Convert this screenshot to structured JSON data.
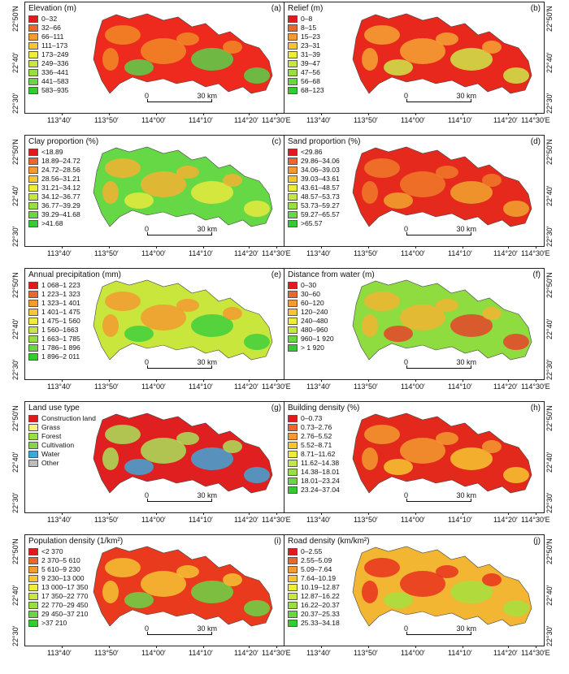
{
  "figure": {
    "x_ticks": [
      "113°40′",
      "113°50′",
      "114°00′",
      "114°10′",
      "114°20′",
      "114°30′E"
    ],
    "y_ticks": [
      "22°50′N",
      "22°40′",
      "22°30′"
    ],
    "scale_zero": "0",
    "scale_label": "30 km"
  },
  "panels": [
    {
      "id": "a",
      "title": "Elevation (m)",
      "label": "(a)",
      "base": "#ee2a1e",
      "blob": "#f08a26",
      "accent": "#58d14a",
      "legend": [
        {
          "text": "0–32",
          "color": "#e31a1c"
        },
        {
          "text": "32–66",
          "color": "#f0662a"
        },
        {
          "text": "66–111",
          "color": "#f59a2e"
        },
        {
          "text": "111–173",
          "color": "#f7c631"
        },
        {
          "text": "173–249",
          "color": "#eeee3a"
        },
        {
          "text": "249–336",
          "color": "#c4e83d"
        },
        {
          "text": "336–441",
          "color": "#98df41"
        },
        {
          "text": "441–583",
          "color": "#6ad545"
        },
        {
          "text": "583–935",
          "color": "#33cc33"
        }
      ]
    },
    {
      "id": "b",
      "title": "Relief (m)",
      "label": "(b)",
      "base": "#e8281c",
      "blob": "#f4a233",
      "accent": "#cfe64a",
      "legend": [
        {
          "text": "0–8",
          "color": "#e31a1c"
        },
        {
          "text": "8–15",
          "color": "#f0662a"
        },
        {
          "text": "15–23",
          "color": "#f59a2e"
        },
        {
          "text": "23–31",
          "color": "#f7c631"
        },
        {
          "text": "31–39",
          "color": "#eeee3a"
        },
        {
          "text": "39–47",
          "color": "#c4e83d"
        },
        {
          "text": "47–56",
          "color": "#98df41"
        },
        {
          "text": "56–68",
          "color": "#6ad545"
        },
        {
          "text": "68–123",
          "color": "#33cc33"
        }
      ]
    },
    {
      "id": "c",
      "title": "Clay proportion (%)",
      "label": "(c)",
      "base": "#66d845",
      "blob": "#f3b233",
      "accent": "#e6ea3e",
      "legend": [
        {
          "text": "<18.89",
          "color": "#e31a1c"
        },
        {
          "text": "18.89–24.72",
          "color": "#f0662a"
        },
        {
          "text": "24.72–28.56",
          "color": "#f59a2e"
        },
        {
          "text": "28.56–31.21",
          "color": "#f7c631"
        },
        {
          "text": "31.21–34.12",
          "color": "#eeee3a"
        },
        {
          "text": "34.12–36.77",
          "color": "#c4e83d"
        },
        {
          "text": "36.77–39.29",
          "color": "#98df41"
        },
        {
          "text": "39.29–41.68",
          "color": "#6ad545"
        },
        {
          "text": ">41.68",
          "color": "#33cc33"
        }
      ]
    },
    {
      "id": "d",
      "title": "Sand proportion (%)",
      "label": "(d)",
      "base": "#e52a1d",
      "blob": "#f07a2a",
      "accent": "#f2a52f",
      "legend": [
        {
          "text": "<29.86",
          "color": "#e31a1c"
        },
        {
          "text": "29.86–34.06",
          "color": "#f0662a"
        },
        {
          "text": "34.06–39.03",
          "color": "#f59a2e"
        },
        {
          "text": "39.03–43.61",
          "color": "#f7c631"
        },
        {
          "text": "43.61–48.57",
          "color": "#eeee3a"
        },
        {
          "text": "48.57–53.73",
          "color": "#c4e83d"
        },
        {
          "text": "53.73–59.27",
          "color": "#98df41"
        },
        {
          "text": "59.27–65.57",
          "color": "#6ad545"
        },
        {
          "text": ">65.57",
          "color": "#33cc33"
        }
      ]
    },
    {
      "id": "e",
      "title": "Annual precipitation (mm)",
      "label": "(e)",
      "base": "#c9e63c",
      "blob": "#f29a2f",
      "accent": "#3fcf3c",
      "legend": [
        {
          "text": "1 068–1 223",
          "color": "#e31a1c"
        },
        {
          "text": "1 223–1 323",
          "color": "#f0662a"
        },
        {
          "text": "1 323–1 401",
          "color": "#f59a2e"
        },
        {
          "text": "1 401–1 475",
          "color": "#f7c631"
        },
        {
          "text": "1 475–1 560",
          "color": "#eeee3a"
        },
        {
          "text": "1 560–1663",
          "color": "#c4e83d"
        },
        {
          "text": "1 663–1 785",
          "color": "#98df41"
        },
        {
          "text": "1 786–1 896",
          "color": "#6ad545"
        },
        {
          "text": "1 896–2 011",
          "color": "#33cc33"
        }
      ]
    },
    {
      "id": "f",
      "title": "Distance from water (m)",
      "label": "(f)",
      "base": "#8edc40",
      "blob": "#f2b432",
      "accent": "#e6442a",
      "legend": [
        {
          "text": "0–30",
          "color": "#e31a1c"
        },
        {
          "text": "30–60",
          "color": "#f0662a"
        },
        {
          "text": "60–120",
          "color": "#f59a2e"
        },
        {
          "text": "120–240",
          "color": "#f7c631"
        },
        {
          "text": "240–480",
          "color": "#eeee3a"
        },
        {
          "text": "480–960",
          "color": "#c4e83d"
        },
        {
          "text": "960–1 920",
          "color": "#6ad545"
        },
        {
          "text": "> 1 920",
          "color": "#33cc33"
        }
      ]
    },
    {
      "id": "g",
      "title": "Land use type",
      "label": "(g)",
      "base": "#e02020",
      "blob": "#a8e05a",
      "accent": "#3ea6d8",
      "legend": [
        {
          "text": "Construction land",
          "color": "#e31a1c"
        },
        {
          "text": "Grass",
          "color": "#f4f27a"
        },
        {
          "text": "Forest",
          "color": "#98df41"
        },
        {
          "text": "Cultivation",
          "color": "#8bd24a"
        },
        {
          "text": "Water",
          "color": "#3ea6d8"
        },
        {
          "text": "Other",
          "color": "#bdbdbd"
        }
      ]
    },
    {
      "id": "h",
      "title": "Building density (%)",
      "label": "(h)",
      "base": "#e3281c",
      "blob": "#f19a2e",
      "accent": "#f7c631",
      "legend": [
        {
          "text": "0–0.73",
          "color": "#e31a1c"
        },
        {
          "text": "0.73–2.76",
          "color": "#f0662a"
        },
        {
          "text": "2.76–5.52",
          "color": "#f59a2e"
        },
        {
          "text": "5.52–8.71",
          "color": "#f7c631"
        },
        {
          "text": "8.71–11.62",
          "color": "#eeee3a"
        },
        {
          "text": "11.62–14.38",
          "color": "#c4e83d"
        },
        {
          "text": "14.38–18.01",
          "color": "#98df41"
        },
        {
          "text": "18.01–23.24",
          "color": "#6ad545"
        },
        {
          "text": "23.24–37.04",
          "color": "#33cc33"
        }
      ]
    },
    {
      "id": "i",
      "title": "Population density (1/km²)",
      "label": "(i)",
      "base": "#ea3a1e",
      "blob": "#f5c233",
      "accent": "#6ad545",
      "legend": [
        {
          "text": "<2 370",
          "color": "#e31a1c"
        },
        {
          "text": "2 370–5 610",
          "color": "#f0662a"
        },
        {
          "text": "5 610–9 230",
          "color": "#f59a2e"
        },
        {
          "text": "9 230–13 000",
          "color": "#f7c631"
        },
        {
          "text": "13 000–17 350",
          "color": "#eeee3a"
        },
        {
          "text": "17 350–22 770",
          "color": "#c4e83d"
        },
        {
          "text": "22 770–29 450",
          "color": "#98df41"
        },
        {
          "text": "29 450–37 210",
          "color": "#6ad545"
        },
        {
          "text": ">37 210",
          "color": "#33cc33"
        }
      ]
    },
    {
      "id": "j",
      "title": "Road density (km/km²)",
      "label": "(j)",
      "base": "#f2b632",
      "blob": "#e8321e",
      "accent": "#a6e140",
      "legend": [
        {
          "text": "0–2.55",
          "color": "#e31a1c"
        },
        {
          "text": "2.55–5.09",
          "color": "#f0662a"
        },
        {
          "text": "5.09–7.64",
          "color": "#f59a2e"
        },
        {
          "text": "7.64–10.19",
          "color": "#f7c631"
        },
        {
          "text": "10.19–12.87",
          "color": "#eeee3a"
        },
        {
          "text": "12.87–16.22",
          "color": "#c4e83d"
        },
        {
          "text": "16.22–20.37",
          "color": "#98df41"
        },
        {
          "text": "20.37–25.33",
          "color": "#6ad545"
        },
        {
          "text": "25.33–34.18",
          "color": "#33cc33"
        }
      ]
    }
  ]
}
